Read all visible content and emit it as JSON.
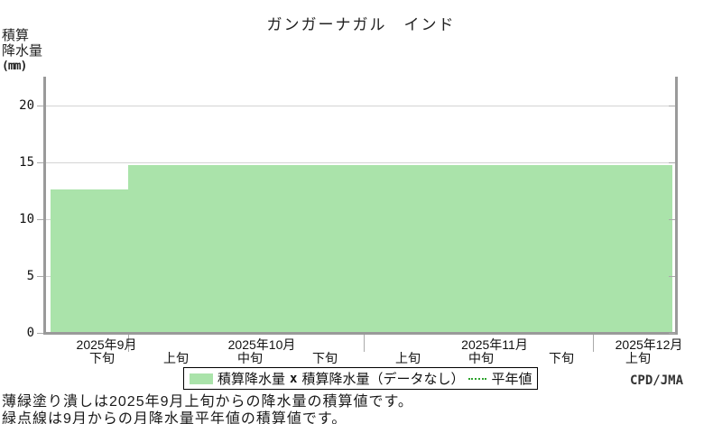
{
  "title": "ガンガーナガル　インド",
  "y_axis": {
    "label_lines": [
      "積算",
      "降水量",
      "(mm)"
    ],
    "ticks": [
      0,
      5,
      10,
      15,
      20
    ]
  },
  "legend": {
    "items": [
      {
        "kind": "fill-swatch",
        "label": "積算降水量"
      },
      {
        "kind": "x-marker",
        "marker": "x",
        "label": "積算降水量（データなし）"
      },
      {
        "kind": "dashed-line",
        "label": "平年値"
      }
    ]
  },
  "captions": [
    "薄緑塗り潰しは2025年9月上旬からの降水量の積算値です。",
    "緑点線は9月からの月降水量平年値の積算値です。"
  ],
  "credit": "CPD/JMA",
  "colors": {
    "fill": "#aae3aa",
    "normal_line": "#2fa32f",
    "axis": "#9a9a9a",
    "grid": "#d4d4d4"
  },
  "chart_data": {
    "type": "area",
    "title": "ガンガーナガル　インド",
    "ylabel": "積算降水量(mm)",
    "ylim": [
      0,
      22.8
    ],
    "yticks": [
      0,
      5,
      10,
      15,
      20
    ],
    "grid": true,
    "legend_position": "bottom",
    "months": [
      {
        "label": "2025年9月",
        "periods": [
          "下旬"
        ]
      },
      {
        "label": "2025年10月",
        "periods": [
          "上旬",
          "中旬",
          "下旬"
        ]
      },
      {
        "label": "2025年11月",
        "periods": [
          "上旬",
          "中旬",
          "下旬"
        ]
      },
      {
        "label": "2025年12月",
        "periods": [
          "上旬"
        ]
      }
    ],
    "series": [
      {
        "name": "積算降水量",
        "values": [
          12.6,
          14.8,
          14.8,
          14.8,
          14.8,
          14.8,
          14.8,
          14.8
        ]
      }
    ]
  }
}
